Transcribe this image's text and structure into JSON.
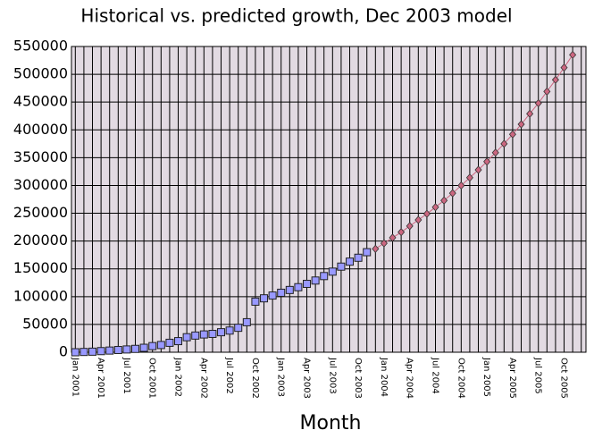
{
  "chart_data": {
    "type": "line",
    "title": "Historical vs. predicted growth, Dec 2003 model",
    "x_label": "Month",
    "categories": [
      "Jan 2001",
      null,
      null,
      "Apr 2001",
      null,
      null,
      "Jul 2001",
      null,
      null,
      "Oct 2001",
      null,
      null,
      "Jan 2002",
      null,
      null,
      "Apr 2002",
      null,
      null,
      "Jul 2002",
      null,
      null,
      "Oct 2002",
      null,
      null,
      "Jan 2003",
      null,
      null,
      "Apr 2003",
      null,
      null,
      "Jul 2003",
      null,
      null,
      "Oct 2003",
      null,
      null,
      "Jan 2004",
      null,
      null,
      "Apr 2004",
      null,
      null,
      "Jul 2004",
      null,
      null,
      "Oct 2004",
      null,
      null,
      "Jan 2005",
      null,
      null,
      "Apr 2005",
      null,
      null,
      "Jul 2005",
      null,
      null,
      "Oct 2005",
      null,
      null
    ],
    "series": [
      {
        "color": "#9999ff",
        "marker": "square",
        "line": false,
        "values": [
          0,
          500,
          1000,
          2000,
          3000,
          4000,
          5000,
          6000,
          8000,
          11000,
          13000,
          17000,
          20000,
          27000,
          30000,
          32000,
          33000,
          36000,
          39000,
          44000,
          54000,
          91000,
          97000,
          102000,
          107000,
          112000,
          117000,
          123000,
          129000,
          137000,
          145000,
          154000,
          163000,
          170000,
          180000,
          null,
          null,
          null,
          null,
          null,
          null,
          null,
          null,
          null,
          null,
          null,
          null,
          null,
          null,
          null,
          null,
          null,
          null,
          null,
          null,
          null,
          null,
          null,
          null,
          null
        ]
      },
      {
        "color": "#cc6680",
        "marker": "diamond",
        "line": true,
        "values": [
          null,
          null,
          null,
          null,
          null,
          null,
          null,
          null,
          null,
          null,
          null,
          null,
          null,
          null,
          null,
          null,
          null,
          null,
          null,
          null,
          null,
          null,
          null,
          null,
          null,
          null,
          null,
          null,
          null,
          null,
          null,
          null,
          null,
          null,
          null,
          186000,
          196000,
          206000,
          216000,
          227000,
          238000,
          249000,
          261000,
          273000,
          286000,
          300000,
          314000,
          328000,
          343000,
          359000,
          375000,
          392000,
          410000,
          429000,
          448000,
          469000,
          490000,
          512000,
          535000,
          null
        ]
      }
    ],
    "ylim": [
      0,
      550000
    ],
    "yticks": [
      0,
      50000,
      100000,
      150000,
      200000,
      250000,
      300000,
      350000,
      400000,
      450000,
      500000,
      550000
    ],
    "grid": true
  }
}
